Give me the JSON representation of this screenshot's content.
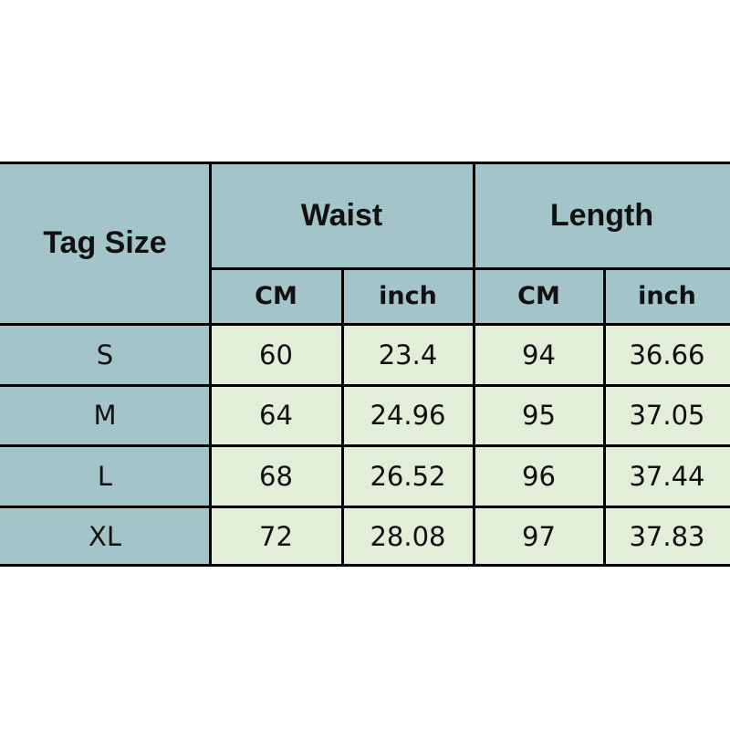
{
  "table": {
    "header": {
      "tag_size": "Tag Size",
      "waist": "Waist",
      "length": "Length",
      "waist_cm": "CM",
      "waist_inch": "inch",
      "length_cm": "CM",
      "length_inch": "inch"
    },
    "rows": [
      {
        "size": "S",
        "waist_cm": "60",
        "waist_inch": "23.4",
        "length_cm": "94",
        "length_inch": "36.66"
      },
      {
        "size": "M",
        "waist_cm": "64",
        "waist_inch": "24.96",
        "length_cm": "95",
        "length_inch": "37.05"
      },
      {
        "size": "L",
        "waist_cm": "68",
        "waist_inch": "26.52",
        "length_cm": "96",
        "length_inch": "37.44"
      },
      {
        "size": "XL",
        "waist_cm": "72",
        "waist_inch": "28.08",
        "length_cm": "97",
        "length_inch": "37.83"
      }
    ],
    "colors": {
      "header_bg": "#a3c4c9",
      "data_bg": "#e2eed8",
      "border": "#000000"
    }
  }
}
